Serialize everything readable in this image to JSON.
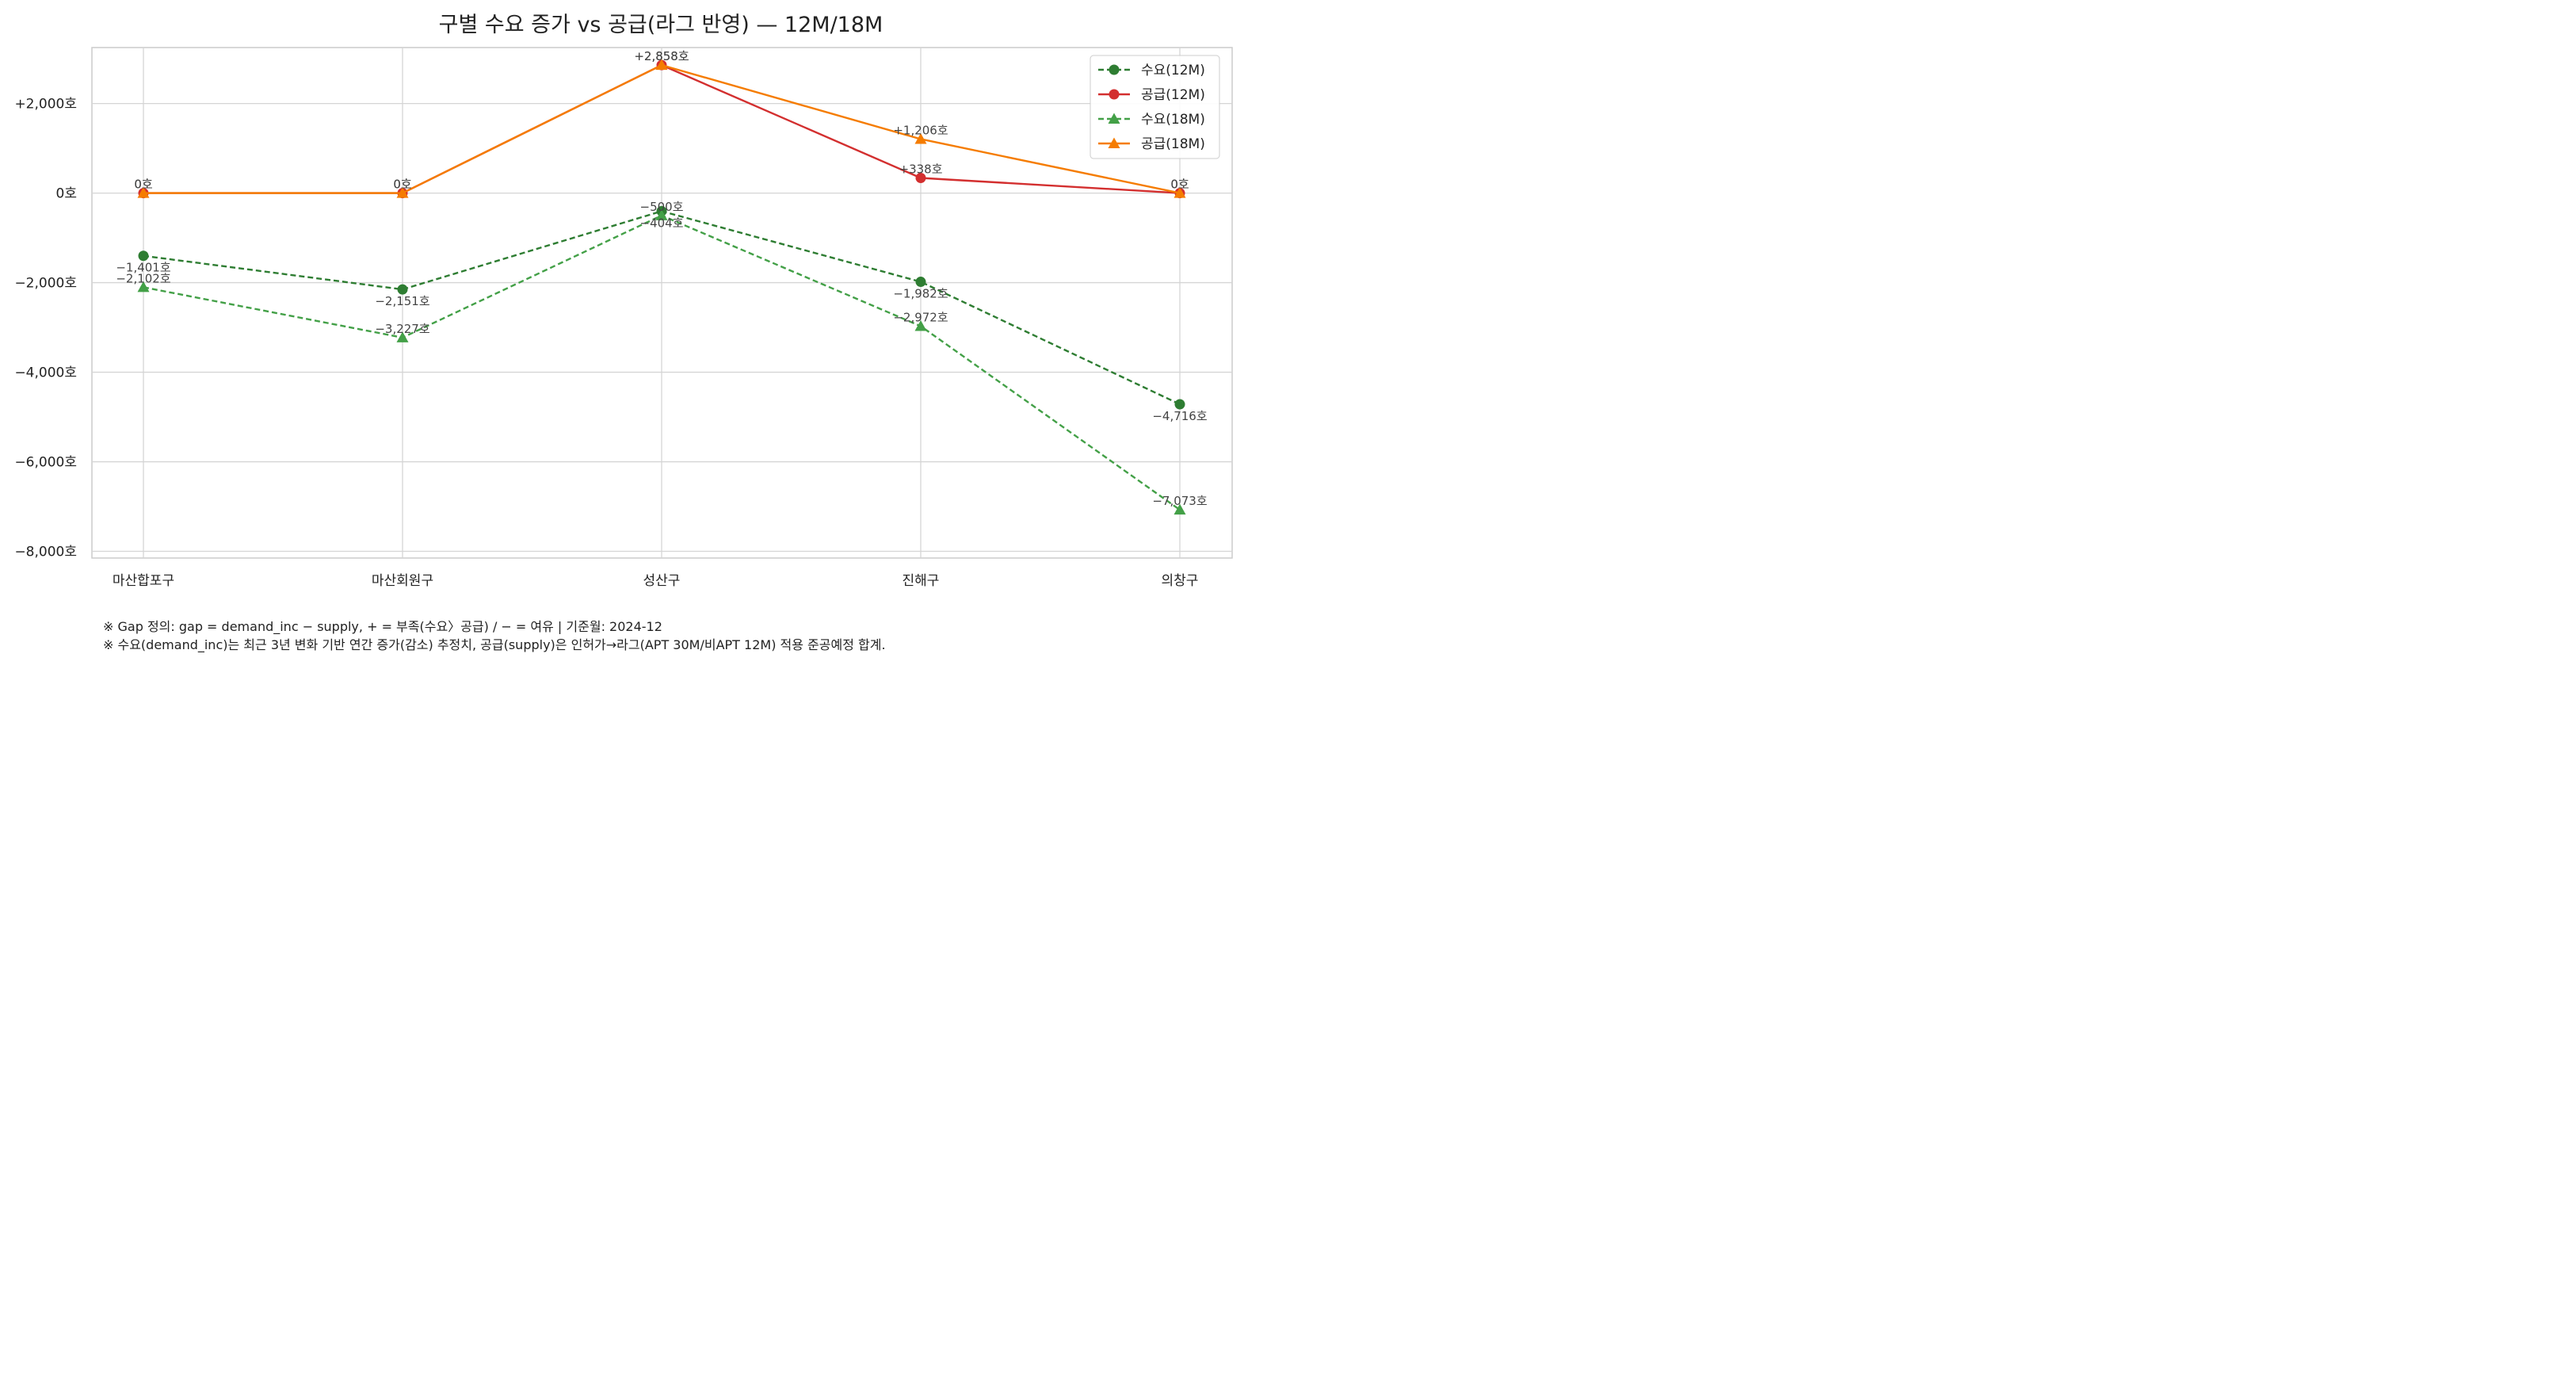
{
  "chart_data": {
    "type": "line",
    "title": "구별 수요 증가 vs 공급(라그 반영) — 12M/18M",
    "categories": [
      "마산합포구",
      "마산회원구",
      "성산구",
      "진해구",
      "의창구"
    ],
    "ylim": [
      -8150,
      3250
    ],
    "yticks": [
      2000,
      0,
      -2000,
      -4000,
      -6000,
      -8000
    ],
    "ytick_labels": [
      "+2,000호",
      "0호",
      "−2,000호",
      "−4,000호",
      "−6,000호",
      "−8,000호"
    ],
    "grid": true,
    "legend_position": "top-right",
    "series": [
      {
        "name": "수요(12M)",
        "values": [
          -1401,
          -2151,
          -404,
          -1982,
          -4716
        ],
        "labels": [
          "−1,401호",
          "−2,151호",
          "−404호",
          "−1,982호",
          "−4,716호"
        ],
        "color": "#2e7d32",
        "dashed": true,
        "marker": "circle"
      },
      {
        "name": "공급(12M)",
        "values": [
          0,
          0,
          2858,
          338,
          0
        ],
        "labels": [
          "0호",
          "0호",
          "+2,858호",
          "+338호",
          "0호"
        ],
        "color": "#d32f2f",
        "dashed": false,
        "marker": "circle"
      },
      {
        "name": "수요(18M)",
        "values": [
          -2102,
          -3227,
          -500,
          -2972,
          -7073
        ],
        "labels": [
          "−2,102호",
          "−3,227호",
          "−500호",
          "−2,972호",
          "−7,073호"
        ],
        "color": "#43a047",
        "dashed": true,
        "marker": "triangle"
      },
      {
        "name": "공급(18M)",
        "values": [
          0,
          0,
          2858,
          1206,
          0
        ],
        "labels": [
          "0호",
          "0호",
          "+2,858호",
          "+1,206호",
          "0호"
        ],
        "color": "#f57c00",
        "dashed": false,
        "marker": "triangle"
      }
    ]
  },
  "footnotes": {
    "line1": "※ Gap 정의: gap = demand_inc − supply,  + = 부족(수요〉공급) / − = 여유  |  기준월: 2024-12",
    "line2": "※ 수요(demand_inc)는 최근 3년 변화 기반 연간 증가(감소) 추정치, 공급(supply)은 인허가→라그(APT 30M/비APT 12M) 적용 준공예정 합계."
  }
}
